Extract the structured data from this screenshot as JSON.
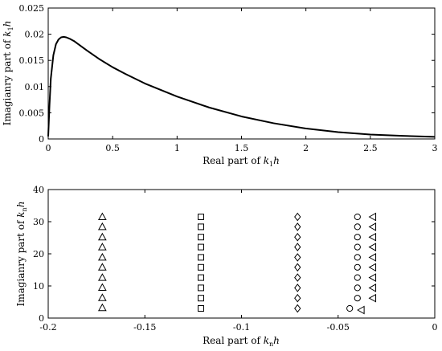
{
  "chart_data": [
    {
      "type": "line",
      "xlabel": {
        "main": "Real part of ",
        "var": "k",
        "sub": "1",
        "tail": "h"
      },
      "ylabel": {
        "main": "Imagianry part of ",
        "var": "k",
        "sub": "1",
        "tail": "h"
      },
      "xlim": [
        0,
        3
      ],
      "ylim": [
        0,
        0.025
      ],
      "xticks": [
        "0",
        "0.5",
        "1",
        "1.5",
        "2",
        "2.5",
        "3"
      ],
      "yticks": [
        "0",
        "0.005",
        "0.01",
        "0.015",
        "0.02",
        "0.025"
      ],
      "grid": false,
      "series": [
        {
          "x": [
            0.0,
            0.01,
            0.02,
            0.04,
            0.06,
            0.08,
            0.1,
            0.12,
            0.14,
            0.17,
            0.2,
            0.25,
            0.3,
            0.4,
            0.5,
            0.6,
            0.75,
            1.0,
            1.25,
            1.5,
            1.75,
            2.0,
            2.25,
            2.5,
            2.75,
            3.0
          ],
          "y": [
            0.0005,
            0.0065,
            0.0115,
            0.016,
            0.0181,
            0.019,
            0.0194,
            0.0195,
            0.0194,
            0.0191,
            0.0187,
            0.0178,
            0.0169,
            0.0152,
            0.0137,
            0.0124,
            0.0106,
            0.0081,
            0.006,
            0.0043,
            0.003,
            0.002,
            0.0013,
            0.00085,
            0.0006,
            0.0004
          ]
        }
      ]
    },
    {
      "type": "scatter",
      "xlabel": {
        "main": "Real part of ",
        "var": "k",
        "sub": "n",
        "tail": "h"
      },
      "ylabel": {
        "main": "Imagianry part of ",
        "var": "k",
        "sub": "n",
        "tail": "h"
      },
      "xlim": [
        -0.2,
        0
      ],
      "ylim": [
        0,
        40
      ],
      "xticks": [
        "-0.2",
        "-0.15",
        "-0.1",
        "-0.05",
        "0"
      ],
      "yticks": [
        "0",
        "10",
        "20",
        "30",
        "40"
      ],
      "grid": false,
      "series": [
        {
          "marker": "triangle-up",
          "x": [
            -0.172,
            -0.172,
            -0.172,
            -0.172,
            -0.172,
            -0.172,
            -0.172,
            -0.172,
            -0.172,
            -0.172
          ],
          "y": [
            3.2,
            6.3,
            9.5,
            12.6,
            15.8,
            18.9,
            22.1,
            25.2,
            28.4,
            31.5
          ]
        },
        {
          "marker": "square",
          "x": [
            -0.121,
            -0.121,
            -0.121,
            -0.121,
            -0.121,
            -0.121,
            -0.121,
            -0.121,
            -0.121,
            -0.121
          ],
          "y": [
            3.0,
            6.2,
            9.4,
            12.6,
            15.8,
            18.9,
            22.1,
            25.2,
            28.4,
            31.5
          ]
        },
        {
          "marker": "diamond",
          "x": [
            -0.071,
            -0.071,
            -0.071,
            -0.071,
            -0.071,
            -0.071,
            -0.071,
            -0.071,
            -0.071,
            -0.071
          ],
          "y": [
            3.0,
            6.2,
            9.4,
            12.6,
            15.8,
            18.9,
            22.1,
            25.2,
            28.4,
            31.5
          ]
        },
        {
          "marker": "circle",
          "x": [
            -0.044,
            -0.04,
            -0.04,
            -0.04,
            -0.04,
            -0.04,
            -0.04,
            -0.04,
            -0.04,
            -0.04
          ],
          "y": [
            3.0,
            6.2,
            9.4,
            12.6,
            15.8,
            18.9,
            22.1,
            25.2,
            28.4,
            31.5
          ]
        },
        {
          "marker": "triangle-left",
          "x": [
            -0.038,
            -0.032,
            -0.032,
            -0.032,
            -0.032,
            -0.032,
            -0.032,
            -0.032,
            -0.032,
            -0.032
          ],
          "y": [
            2.5,
            6.2,
            9.4,
            12.6,
            15.8,
            18.9,
            22.1,
            25.2,
            28.4,
            31.5
          ]
        }
      ]
    }
  ]
}
